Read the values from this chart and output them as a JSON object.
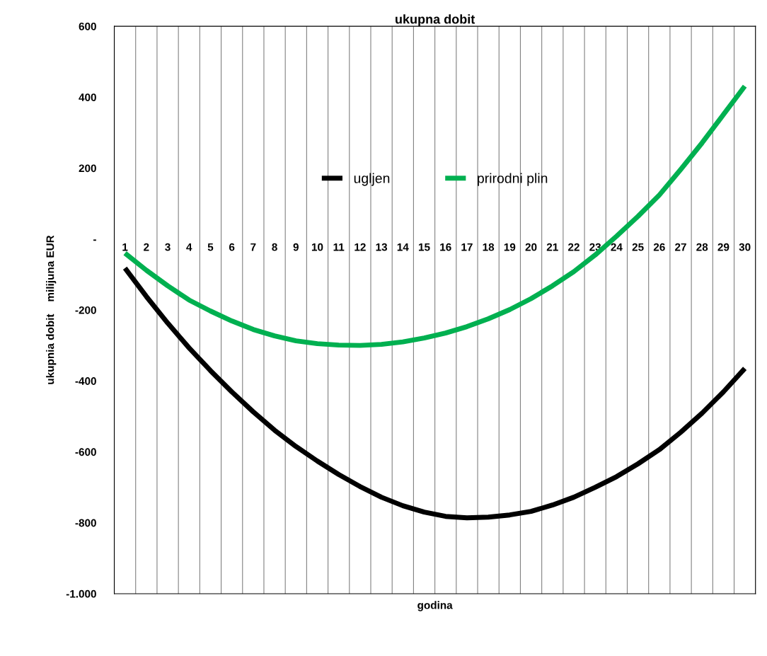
{
  "chart_data": {
    "type": "line",
    "title": "ukupna dobit",
    "xlabel": "godina",
    "ylabel": "ukupnia dobit    milijuna EUR",
    "categories": [
      "1",
      "2",
      "3",
      "4",
      "5",
      "6",
      "7",
      "8",
      "9",
      "10",
      "11",
      "12",
      "13",
      "14",
      "15",
      "16",
      "17",
      "18",
      "19",
      "20",
      "21",
      "22",
      "23",
      "24",
      "25",
      "26",
      "27",
      "28",
      "29",
      "30"
    ],
    "series": [
      {
        "name": "ugljen",
        "color": "#000000",
        "values": [
          -82,
          -162,
          -237,
          -307,
          -371,
          -431,
          -487,
          -539,
          -585,
          -626,
          -664,
          -698,
          -728,
          -752,
          -770,
          -782,
          -786,
          -784,
          -778,
          -768,
          -750,
          -728,
          -700,
          -670,
          -634,
          -594,
          -545,
          -491,
          -431,
          -365
        ]
      },
      {
        "name": "prirodni plin",
        "color": "#00b050",
        "values": [
          -40,
          -88,
          -132,
          -172,
          -203,
          -231,
          -255,
          -273,
          -287,
          -295,
          -299,
          -300,
          -297,
          -290,
          -279,
          -265,
          -247,
          -225,
          -199,
          -168,
          -132,
          -92,
          -45,
          8,
          64,
          124,
          196,
          271,
          351,
          431
        ]
      }
    ],
    "ylim": [
      -1000,
      600
    ],
    "yticks": [
      {
        "value": -1000,
        "label": "-1.000"
      },
      -800,
      -600,
      -400,
      -200,
      {
        "value": 0,
        "label": "-"
      },
      200,
      400,
      600
    ],
    "grid": "x",
    "legend": "top",
    "marker": "none",
    "line_style": "solid"
  }
}
